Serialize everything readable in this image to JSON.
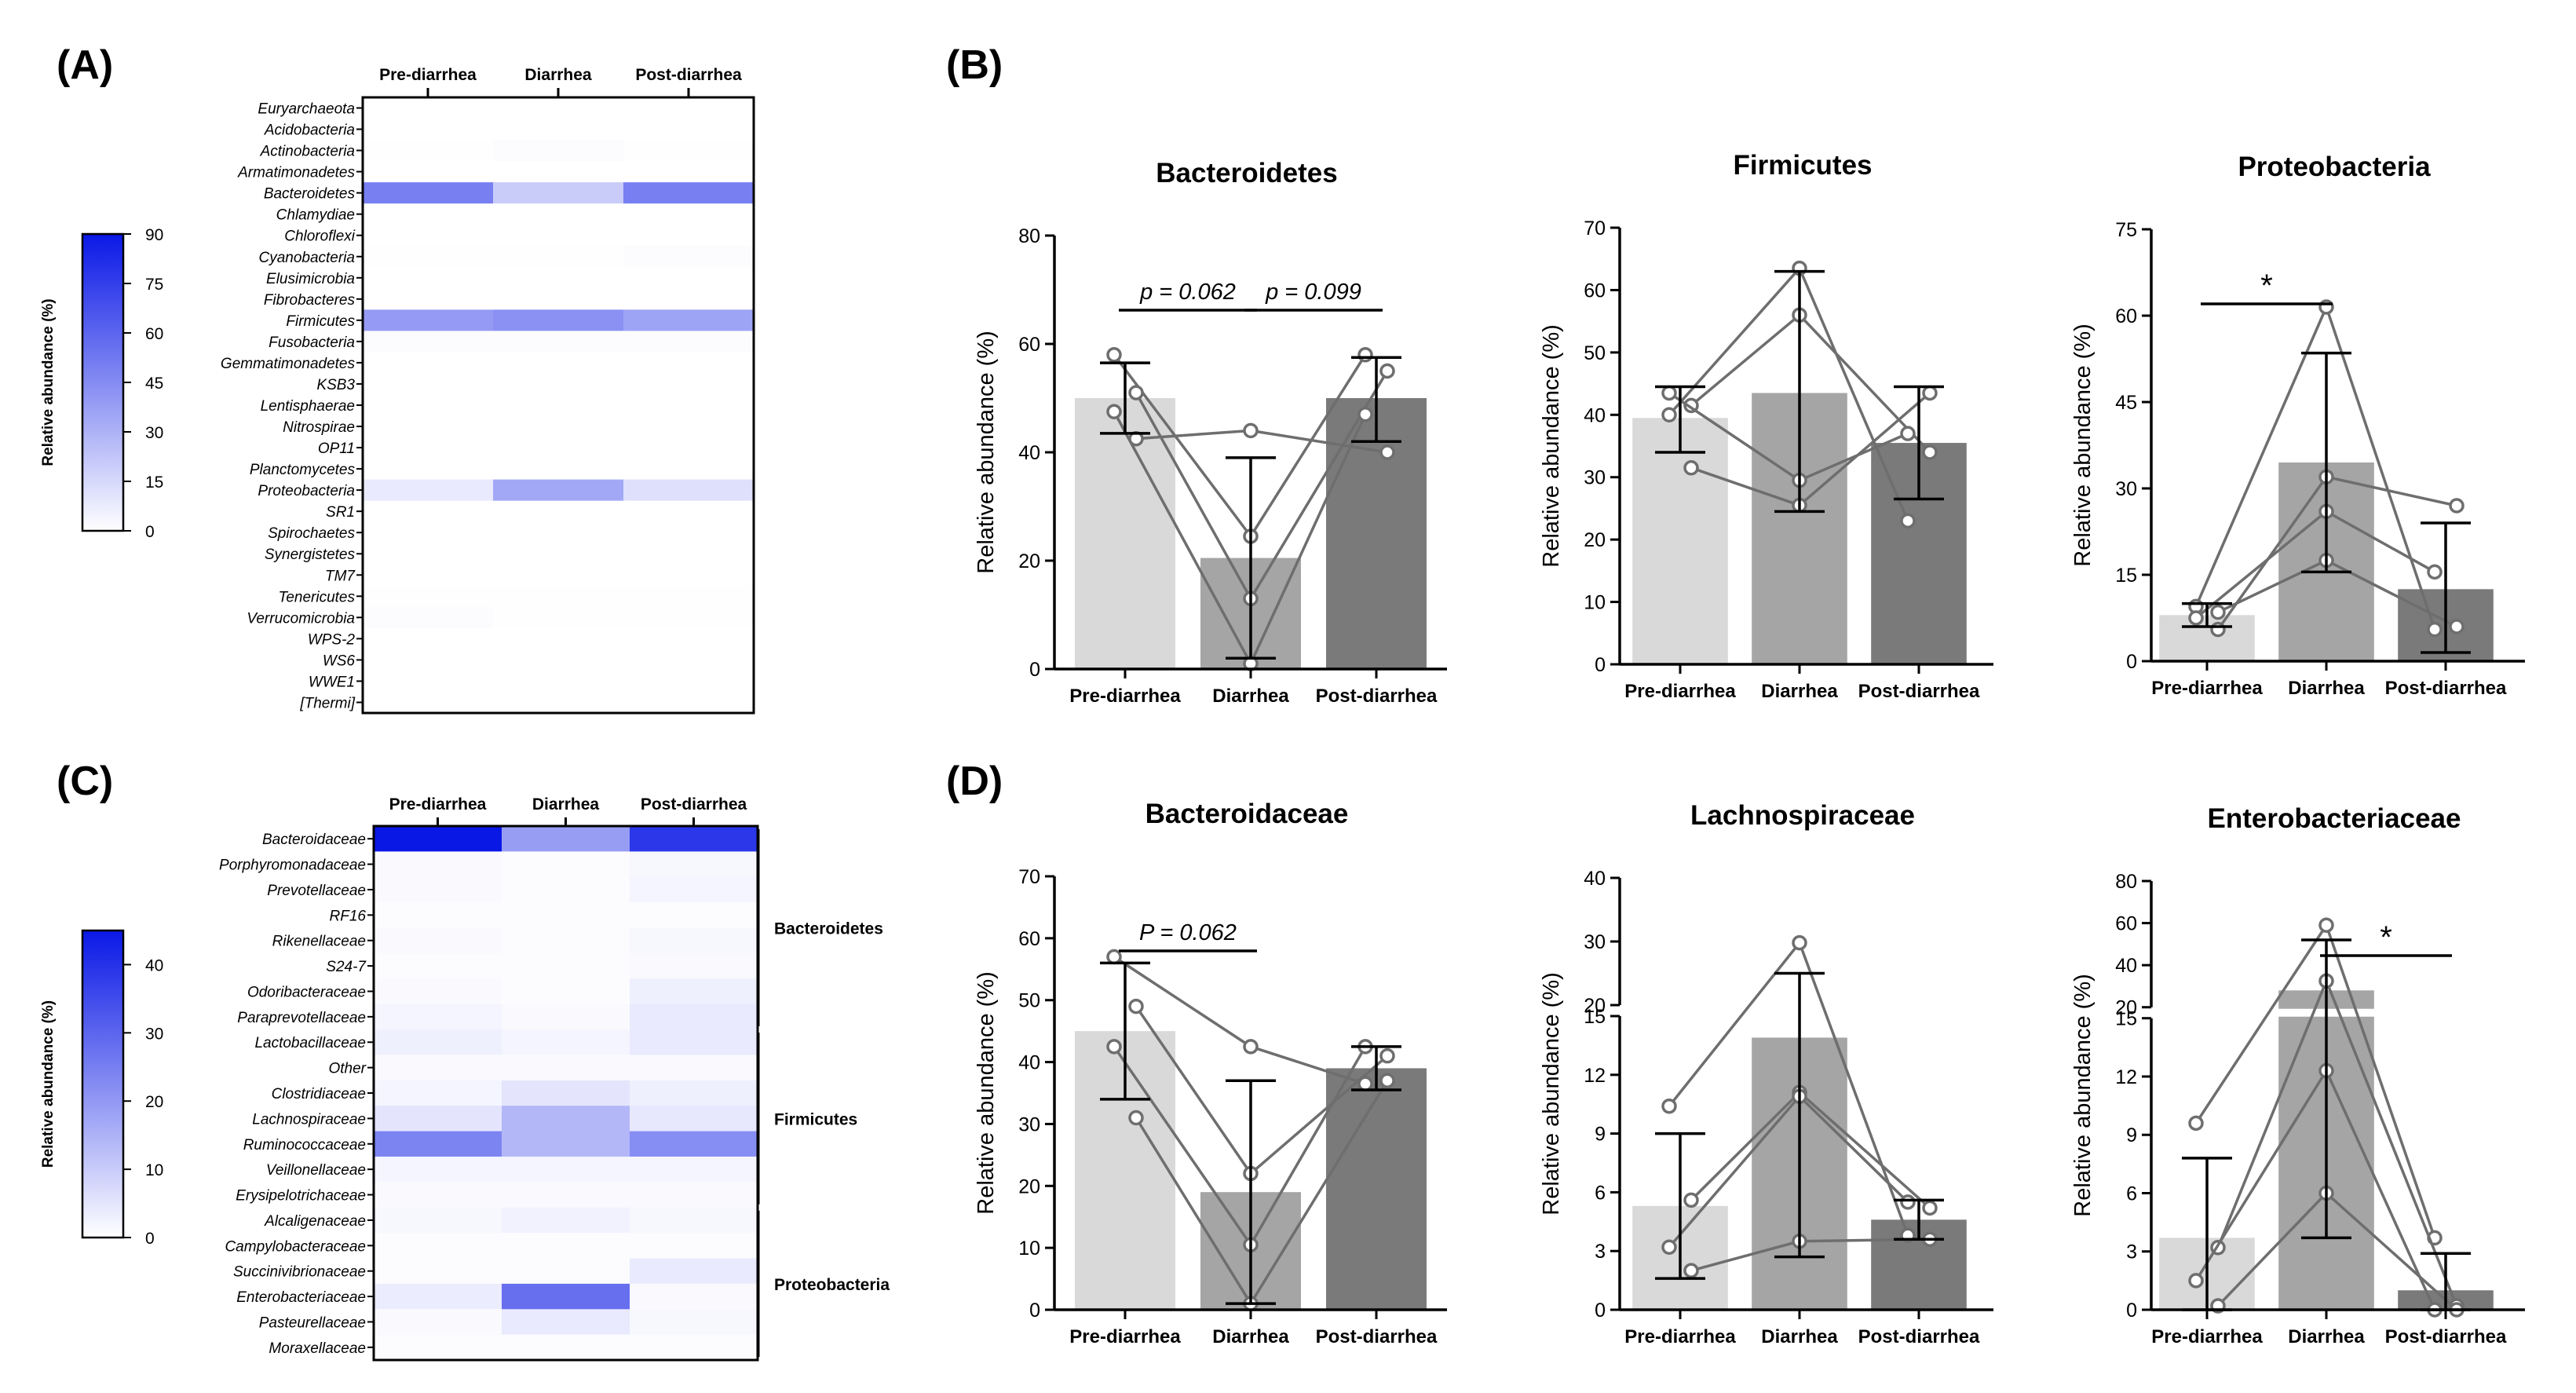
{
  "colors": {
    "bar1": "#d9d9d9",
    "bar2": "#a5a5a5",
    "bar3": "#7a7a7a",
    "heat": "#0a18e6",
    "line": "#6e6e6e",
    "axis": "#000000"
  },
  "panels": {
    "A": {
      "letter": "(A)",
      "columns": [
        "Pre-diarrhea",
        "Diarrhea",
        "Post-diarrhea"
      ],
      "legend": {
        "label": "Relative abundance (%)",
        "ticks": [
          "0",
          "15",
          "30",
          "45",
          "60",
          "75",
          "90"
        ],
        "max": 90
      },
      "rows": [
        {
          "name": "Euryarchaeota",
          "values": [
            0,
            0,
            0
          ]
        },
        {
          "name": "Acidobacteria",
          "values": [
            0,
            0,
            0
          ]
        },
        {
          "name": "Actinobacteria",
          "values": [
            0.5,
            1,
            0.5
          ]
        },
        {
          "name": "Armatimonadetes",
          "values": [
            0,
            0,
            0
          ]
        },
        {
          "name": "Bacteroidetes",
          "values": [
            50,
            20,
            50
          ]
        },
        {
          "name": "Chlamydiae",
          "values": [
            0,
            0,
            0
          ]
        },
        {
          "name": "Chloroflexi",
          "values": [
            0,
            0,
            0
          ]
        },
        {
          "name": "Cyanobacteria",
          "values": [
            0.5,
            0.5,
            1
          ]
        },
        {
          "name": "Elusimicrobia",
          "values": [
            0,
            0,
            0
          ]
        },
        {
          "name": "Fibrobacteres",
          "values": [
            0,
            0,
            0
          ]
        },
        {
          "name": "Firmicutes",
          "values": [
            39,
            43,
            36
          ]
        },
        {
          "name": "Fusobacteria",
          "values": [
            1,
            1,
            1
          ]
        },
        {
          "name": "Gemmatimonadetes",
          "values": [
            0,
            0,
            0
          ]
        },
        {
          "name": "KSB3",
          "values": [
            0,
            0,
            0
          ]
        },
        {
          "name": "Lentisphaerae",
          "values": [
            0,
            0,
            0
          ]
        },
        {
          "name": "Nitrospirae",
          "values": [
            0,
            0,
            0
          ]
        },
        {
          "name": "OP11",
          "values": [
            0,
            0,
            0
          ]
        },
        {
          "name": "Planctomycetes",
          "values": [
            0,
            0,
            0
          ]
        },
        {
          "name": "Proteobacteria",
          "values": [
            8,
            34,
            12
          ]
        },
        {
          "name": "SR1",
          "values": [
            0,
            0,
            0
          ]
        },
        {
          "name": "Spirochaetes",
          "values": [
            0,
            0,
            0
          ]
        },
        {
          "name": "Synergistetes",
          "values": [
            0,
            0,
            0
          ]
        },
        {
          "name": "TM7",
          "values": [
            0,
            0,
            0
          ]
        },
        {
          "name": "Tenericutes",
          "values": [
            0.5,
            0.5,
            0.5
          ]
        },
        {
          "name": "Verrucomicrobia",
          "values": [
            1,
            0.5,
            0.5
          ]
        },
        {
          "name": "WPS-2",
          "values": [
            0,
            0,
            0
          ]
        },
        {
          "name": "WS6",
          "values": [
            0,
            0,
            0
          ]
        },
        {
          "name": "WWE1",
          "values": [
            0,
            0,
            0
          ]
        },
        {
          "name": "[Thermi]",
          "values": [
            0,
            0,
            0
          ]
        }
      ]
    },
    "C": {
      "letter": "(C)",
      "columns": [
        "Pre-diarrhea",
        "Diarrhea",
        "Post-diarrhea"
      ],
      "legend": {
        "label": "Relative abundance (%)",
        "ticks": [
          "0",
          "10",
          "20",
          "30",
          "40"
        ],
        "max": 45
      },
      "groups": [
        {
          "name": "Bacteroidetes",
          "from": 0,
          "to": 7
        },
        {
          "name": "Firmicutes",
          "from": 8,
          "to": 14
        },
        {
          "name": "Proteobacteria",
          "from": 15,
          "to": 20
        }
      ],
      "rows": [
        {
          "name": "Bacteroidaceae",
          "values": [
            45,
            19,
            39
          ]
        },
        {
          "name": "Porphyromonadaceae",
          "values": [
            1,
            0.5,
            1.5
          ]
        },
        {
          "name": "Prevotellaceae",
          "values": [
            1,
            0.5,
            2
          ]
        },
        {
          "name": "RF16",
          "values": [
            0.5,
            0.5,
            0.5
          ]
        },
        {
          "name": "Rikenellaceae",
          "values": [
            1,
            0.5,
            1.5
          ]
        },
        {
          "name": "S24-7",
          "values": [
            0.5,
            0.5,
            1
          ]
        },
        {
          "name": "Odoribacteraceae",
          "values": [
            1,
            0.5,
            3
          ]
        },
        {
          "name": "Paraprevotellaceae",
          "values": [
            2,
            1,
            4
          ]
        },
        {
          "name": "Lactobacillaceae",
          "values": [
            3,
            2,
            4
          ]
        },
        {
          "name": "Other",
          "values": [
            1,
            1,
            1
          ]
        },
        {
          "name": "Clostridiaceae",
          "values": [
            2,
            5,
            3
          ]
        },
        {
          "name": "Lachnospiraceae",
          "values": [
            5,
            14,
            4.5
          ]
        },
        {
          "name": "Ruminococcaceae",
          "values": [
            24,
            14,
            22
          ]
        },
        {
          "name": "Veillonellaceae",
          "values": [
            2,
            2,
            2
          ]
        },
        {
          "name": "Erysipelotrichaceae",
          "values": [
            1,
            1,
            1
          ]
        },
        {
          "name": "Alcaligenaceae",
          "values": [
            1.5,
            2.5,
            1.5
          ]
        },
        {
          "name": "Campylobacteraceae",
          "values": [
            0.5,
            0.5,
            0.5
          ]
        },
        {
          "name": "Succinivibrionaceae",
          "values": [
            0.5,
            0.5,
            4
          ]
        },
        {
          "name": "Enterobacteriaceae",
          "values": [
            3.7,
            28,
            1
          ]
        },
        {
          "name": "Pasteurellaceae",
          "values": [
            1,
            4,
            1.5
          ]
        },
        {
          "name": "Moraxellaceae",
          "values": [
            0.5,
            0.5,
            0.5
          ]
        }
      ]
    },
    "B": {
      "letter": "(B)"
    },
    "D": {
      "letter": "(D)"
    }
  },
  "chart_data": [
    {
      "id": "B1",
      "type": "bar",
      "title": "Bacteroidetes",
      "ylabel": "Relative abundance (%)",
      "categories": [
        "Pre-diarrhea",
        "Diarrhea",
        "Post-diarrhea"
      ],
      "ylim": [
        0,
        80
      ],
      "yticks": [
        "0",
        "20",
        "40",
        "60",
        "80"
      ],
      "values": [
        50,
        20.5,
        50
      ],
      "err_low": [
        43.5,
        2,
        42
      ],
      "err_high": [
        56.5,
        39,
        57.5
      ],
      "individuals": [
        [
          58,
          24.5,
          58
        ],
        [
          51,
          13,
          55
        ],
        [
          47.5,
          1,
          47
        ],
        [
          42.5,
          44,
          40
        ]
      ],
      "annotations": [
        {
          "text": "p = 0.062",
          "from": 0,
          "to": 1
        },
        {
          "text": "p = 0.099",
          "from": 1,
          "to": 2
        }
      ]
    },
    {
      "id": "B2",
      "type": "bar",
      "title": "Firmicutes",
      "ylabel": "Relative abundance (%)",
      "categories": [
        "Pre-diarrhea",
        "Diarrhea",
        "Post-diarrhea"
      ],
      "ylim": [
        0,
        70
      ],
      "yticks": [
        "0",
        "10",
        "20",
        "30",
        "40",
        "50",
        "60",
        "70"
      ],
      "values": [
        39.5,
        43.5,
        35.5
      ],
      "err_low": [
        34,
        24.5,
        26.5
      ],
      "err_high": [
        44.5,
        63,
        44.5
      ],
      "individuals": [
        [
          40,
          63.5,
          23
        ],
        [
          41.5,
          56,
          34
        ],
        [
          43.5,
          29.5,
          37
        ],
        [
          31.5,
          25.5,
          43.5
        ]
      ],
      "annotations": []
    },
    {
      "id": "B3",
      "type": "bar",
      "title": "Proteobacteria",
      "ylabel": "Relative abundance (%)",
      "categories": [
        "Pre-diarrhea",
        "Diarrhea",
        "Post-diarrhea"
      ],
      "ylim": [
        0,
        75
      ],
      "yticks": [
        "0",
        "15",
        "30",
        "45",
        "60",
        "75"
      ],
      "values": [
        8,
        34.5,
        12.5
      ],
      "err_low": [
        6,
        15.5,
        1.5
      ],
      "err_high": [
        10,
        53.5,
        24
      ],
      "individuals": [
        [
          9.5,
          61.5,
          5.5
        ],
        [
          5.5,
          32,
          27
        ],
        [
          7.5,
          26,
          15.5
        ],
        [
          8.5,
          17.5,
          6
        ]
      ],
      "annotations": [
        {
          "text": "*",
          "from": 0,
          "to": 1
        }
      ]
    },
    {
      "id": "D1",
      "type": "bar",
      "title": "Bacteroidaceae",
      "ylabel": "Relative abundance (%)",
      "categories": [
        "Pre-diarrhea",
        "Diarrhea",
        "Post-diarrhea"
      ],
      "ylim": [
        0,
        70
      ],
      "yticks": [
        "0",
        "10",
        "20",
        "30",
        "40",
        "50",
        "60",
        "70"
      ],
      "values": [
        45,
        19,
        39
      ],
      "err_low": [
        34,
        1,
        35.5
      ],
      "err_high": [
        56,
        37,
        42.5
      ],
      "individuals": [
        [
          57,
          42.5,
          36.5
        ],
        [
          49,
          22,
          41
        ],
        [
          42.5,
          10.5,
          42.5
        ],
        [
          31,
          1,
          37
        ]
      ],
      "annotations": [
        {
          "text": "P = 0.062",
          "from": 0,
          "to": 1
        }
      ]
    },
    {
      "id": "D2",
      "type": "bar",
      "title": "Lachnospiraceae",
      "ylabel": "Relative abundance (%)",
      "categories": [
        "Pre-diarrhea",
        "Diarrhea",
        "Post-diarrhea"
      ],
      "ylim": [
        0,
        40
      ],
      "axis_break": [
        15,
        20
      ],
      "yticks": [
        "0",
        "3",
        "6",
        "9",
        "12",
        "15",
        "20",
        "30",
        "40"
      ],
      "values": [
        5.3,
        13.9,
        4.6
      ],
      "err_low": [
        1.6,
        2.7,
        3.6
      ],
      "err_high": [
        9,
        25,
        5.6
      ],
      "individuals": [
        [
          10.4,
          29.8,
          3.8
        ],
        [
          5.6,
          11.1,
          5.2
        ],
        [
          3.2,
          10.9,
          5.5
        ],
        [
          2,
          3.5,
          3.6
        ]
      ],
      "annotations": []
    },
    {
      "id": "D3",
      "type": "bar",
      "title": "Enterobacteriaceae",
      "ylabel": "Relative abundance (%)",
      "categories": [
        "Pre-diarrhea",
        "Diarrhea",
        "Post-diarrhea"
      ],
      "ylim": [
        0,
        80
      ],
      "axis_break": [
        15,
        20
      ],
      "yticks": [
        "0",
        "3",
        "6",
        "9",
        "12",
        "15",
        "20",
        "40",
        "60",
        "80"
      ],
      "values": [
        3.7,
        28,
        1
      ],
      "err_low": [
        0,
        3.7,
        0
      ],
      "err_high": [
        7.8,
        52,
        2.9
      ],
      "individuals": [
        [
          9.6,
          59,
          3.7
        ],
        [
          3.2,
          32.5,
          0.2
        ],
        [
          1.5,
          12.3,
          0
        ],
        [
          0.2,
          6,
          0
        ]
      ],
      "annotations": [
        {
          "text": "*",
          "from": 1,
          "to": 2
        }
      ]
    }
  ]
}
